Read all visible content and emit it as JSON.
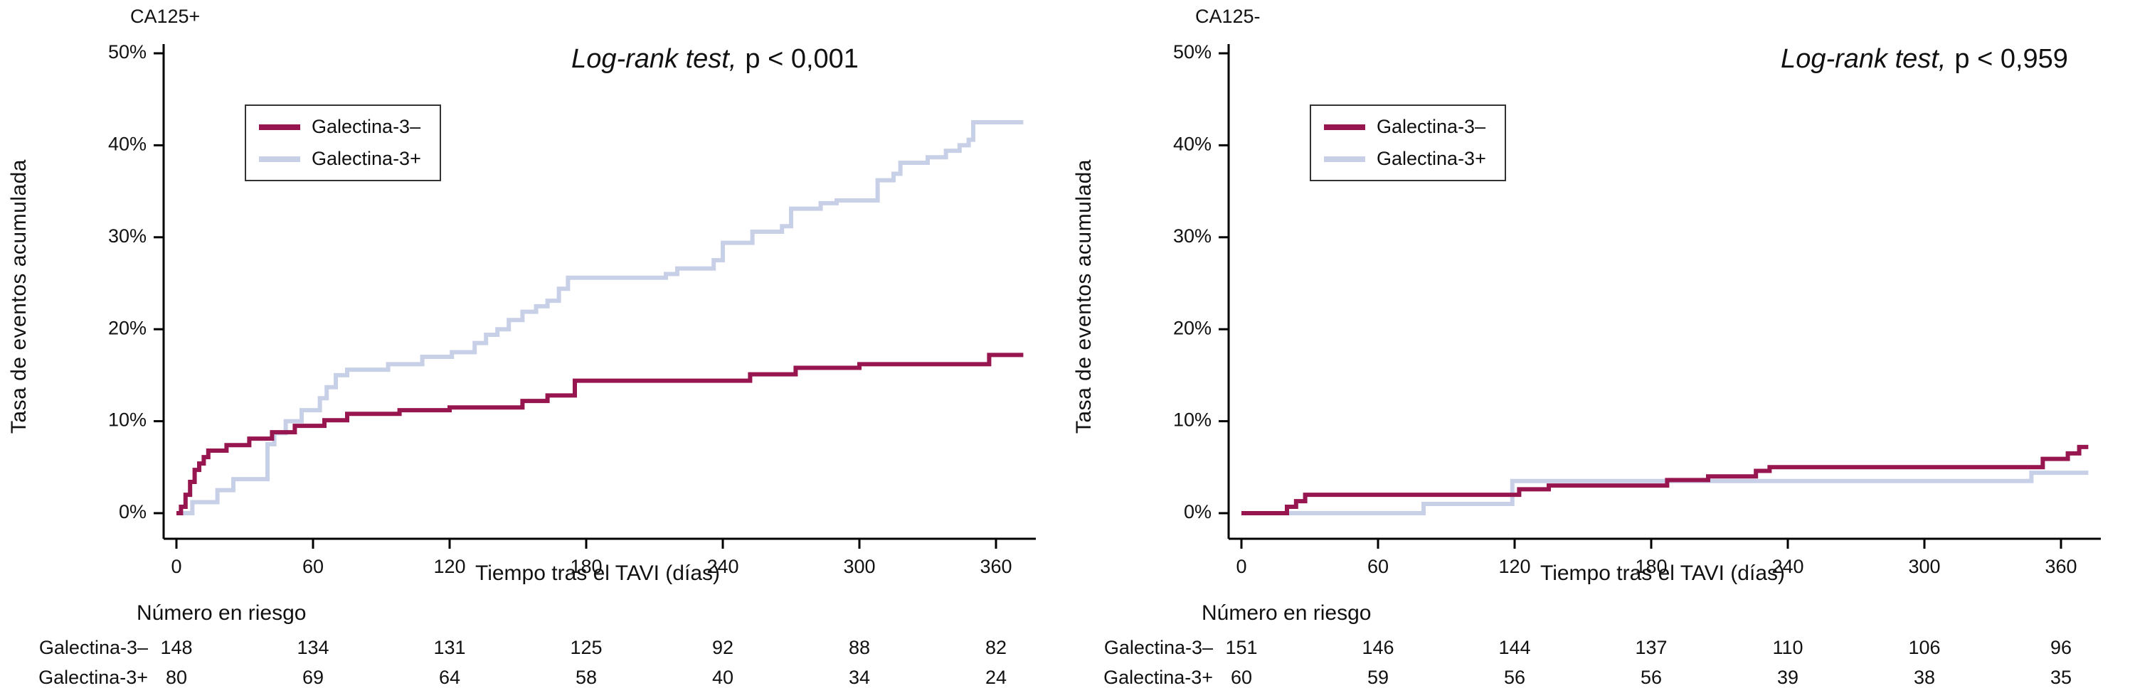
{
  "colors": {
    "galectina_neg": "#97164F",
    "galectina_pos": "#C8D0E8",
    "axis": "#000000"
  },
  "chart_data": [
    {
      "type": "line",
      "subtype": "kaplan-meier-step",
      "panel_label": "CA125+",
      "annotation": {
        "italic": "Log-rank test,",
        "value": "p < 0,001"
      },
      "xlabel": "Tiempo tras el TAVI (días)",
      "ylabel": "Tasa de eventos acumulada",
      "xlim": [
        0,
        375
      ],
      "ylim": [
        0,
        50
      ],
      "grid": false,
      "legend_position": "upper-left-inside",
      "xticks": [
        0,
        60,
        120,
        180,
        240,
        300,
        360
      ],
      "yticks": [
        "0%",
        "10%",
        "20%",
        "30%",
        "40%",
        "50%"
      ],
      "ytick_values": [
        0,
        10,
        20,
        30,
        40,
        50
      ],
      "series": [
        {
          "name": "Galectina-3–",
          "color": "#97164F",
          "points": [
            [
              0,
              0
            ],
            [
              2,
              0.7
            ],
            [
              4,
              2
            ],
            [
              6,
              3.4
            ],
            [
              8,
              4.7
            ],
            [
              10,
              5.4
            ],
            [
              12,
              6.1
            ],
            [
              14,
              6.8
            ],
            [
              20,
              6.8
            ],
            [
              22,
              7.4
            ],
            [
              30,
              7.4
            ],
            [
              32,
              8.1
            ],
            [
              40,
              8.1
            ],
            [
              42,
              8.8
            ],
            [
              50,
              8.8
            ],
            [
              52,
              9.5
            ],
            [
              62,
              9.5
            ],
            [
              65,
              10.1
            ],
            [
              72,
              10.1
            ],
            [
              75,
              10.8
            ],
            [
              95,
              10.8
            ],
            [
              98,
              11.2
            ],
            [
              118,
              11.2
            ],
            [
              120,
              11.5
            ],
            [
              148,
              11.5
            ],
            [
              152,
              12.2
            ],
            [
              160,
              12.2
            ],
            [
              163,
              12.8
            ],
            [
              172,
              12.8
            ],
            [
              175,
              14.4
            ],
            [
              248,
              14.4
            ],
            [
              252,
              15.1
            ],
            [
              268,
              15.1
            ],
            [
              272,
              15.8
            ],
            [
              295,
              15.8
            ],
            [
              300,
              16.2
            ],
            [
              352,
              16.2
            ],
            [
              357,
              17.2
            ],
            [
              372,
              17.2
            ]
          ]
        },
        {
          "name": "Galectina-3+",
          "color": "#C8D0E8",
          "points": [
            [
              0,
              0
            ],
            [
              5,
              0
            ],
            [
              7,
              1.2
            ],
            [
              15,
              1.2
            ],
            [
              18,
              2.5
            ],
            [
              22,
              2.5
            ],
            [
              25,
              3.7
            ],
            [
              38,
              3.7
            ],
            [
              40,
              7.5
            ],
            [
              43,
              8.7
            ],
            [
              48,
              10
            ],
            [
              53,
              10
            ],
            [
              55,
              11.2
            ],
            [
              60,
              11.2
            ],
            [
              63,
              12.5
            ],
            [
              66,
              13.7
            ],
            [
              70,
              15
            ],
            [
              75,
              15.6
            ],
            [
              90,
              15.6
            ],
            [
              93,
              16.2
            ],
            [
              105,
              16.2
            ],
            [
              108,
              17
            ],
            [
              118,
              17
            ],
            [
              121,
              17.5
            ],
            [
              128,
              17.5
            ],
            [
              131,
              18.5
            ],
            [
              136,
              19.4
            ],
            [
              141,
              20
            ],
            [
              146,
              21
            ],
            [
              152,
              21.9
            ],
            [
              158,
              22.5
            ],
            [
              163,
              23.1
            ],
            [
              168,
              24.4
            ],
            [
              172,
              25.6
            ],
            [
              178,
              25.6
            ],
            [
              215,
              26
            ],
            [
              220,
              26.6
            ],
            [
              232,
              26.6
            ],
            [
              236,
              27.5
            ],
            [
              240,
              29.4
            ],
            [
              250,
              29.4
            ],
            [
              253,
              30.6
            ],
            [
              262,
              30.6
            ],
            [
              266,
              31.2
            ],
            [
              270,
              33.1
            ],
            [
              280,
              33.1
            ],
            [
              283,
              33.7
            ],
            [
              290,
              34
            ],
            [
              305,
              34
            ],
            [
              308,
              36.2
            ],
            [
              315,
              36.9
            ],
            [
              318,
              38.1
            ],
            [
              330,
              38.7
            ],
            [
              335,
              38.7
            ],
            [
              338,
              39.4
            ],
            [
              344,
              40
            ],
            [
              348,
              40.6
            ],
            [
              350,
              42.5
            ],
            [
              372,
              42.5
            ]
          ]
        }
      ],
      "risk_table": {
        "title": "Número en riesgo",
        "rows": [
          {
            "label": "Galectina-3–",
            "values": [
              148,
              134,
              131,
              125,
              92,
              88,
              82
            ]
          },
          {
            "label": "Galectina-3+",
            "values": [
              80,
              69,
              64,
              58,
              40,
              34,
              24
            ]
          }
        ]
      }
    },
    {
      "type": "line",
      "subtype": "kaplan-meier-step",
      "panel_label": "CA125-",
      "annotation": {
        "italic": "Log-rank test,",
        "value": "p < 0,959"
      },
      "xlabel": "Tiempo tras el TAVI (días)",
      "ylabel": "Tasa de eventos acumulada",
      "xlim": [
        0,
        375
      ],
      "ylim": [
        0,
        50
      ],
      "grid": false,
      "legend_position": "upper-left-inside",
      "xticks": [
        0,
        60,
        120,
        180,
        240,
        300,
        360
      ],
      "yticks": [
        "0%",
        "10%",
        "20%",
        "30%",
        "40%",
        "50%"
      ],
      "ytick_values": [
        0,
        10,
        20,
        30,
        40,
        50
      ],
      "series": [
        {
          "name": "Galectina-3–",
          "color": "#97164F",
          "points": [
            [
              0,
              0
            ],
            [
              18,
              0
            ],
            [
              20,
              0.7
            ],
            [
              24,
              1.3
            ],
            [
              28,
              2
            ],
            [
              118,
              2
            ],
            [
              122,
              2.6
            ],
            [
              132,
              2.6
            ],
            [
              135,
              3
            ],
            [
              183,
              3
            ],
            [
              187,
              3.6
            ],
            [
              200,
              3.6
            ],
            [
              205,
              4
            ],
            [
              222,
              4
            ],
            [
              226,
              4.6
            ],
            [
              232,
              5
            ],
            [
              348,
              5
            ],
            [
              352,
              5.9
            ],
            [
              360,
              5.9
            ],
            [
              363,
              6.5
            ],
            [
              368,
              7.2
            ],
            [
              372,
              7.2
            ]
          ]
        },
        {
          "name": "Galectina-3+",
          "color": "#C8D0E8",
          "points": [
            [
              0,
              0
            ],
            [
              78,
              0
            ],
            [
              80,
              1
            ],
            [
              116,
              1
            ],
            [
              119,
              3.5
            ],
            [
              342,
              3.5
            ],
            [
              347,
              4.4
            ],
            [
              372,
              4.4
            ]
          ]
        }
      ],
      "risk_table": {
        "title": "Número en riesgo",
        "rows": [
          {
            "label": "Galectina-3–",
            "values": [
              151,
              146,
              144,
              137,
              110,
              106,
              96
            ]
          },
          {
            "label": "Galectina-3+",
            "values": [
              60,
              59,
              56,
              56,
              39,
              38,
              35
            ]
          }
        ]
      }
    }
  ]
}
